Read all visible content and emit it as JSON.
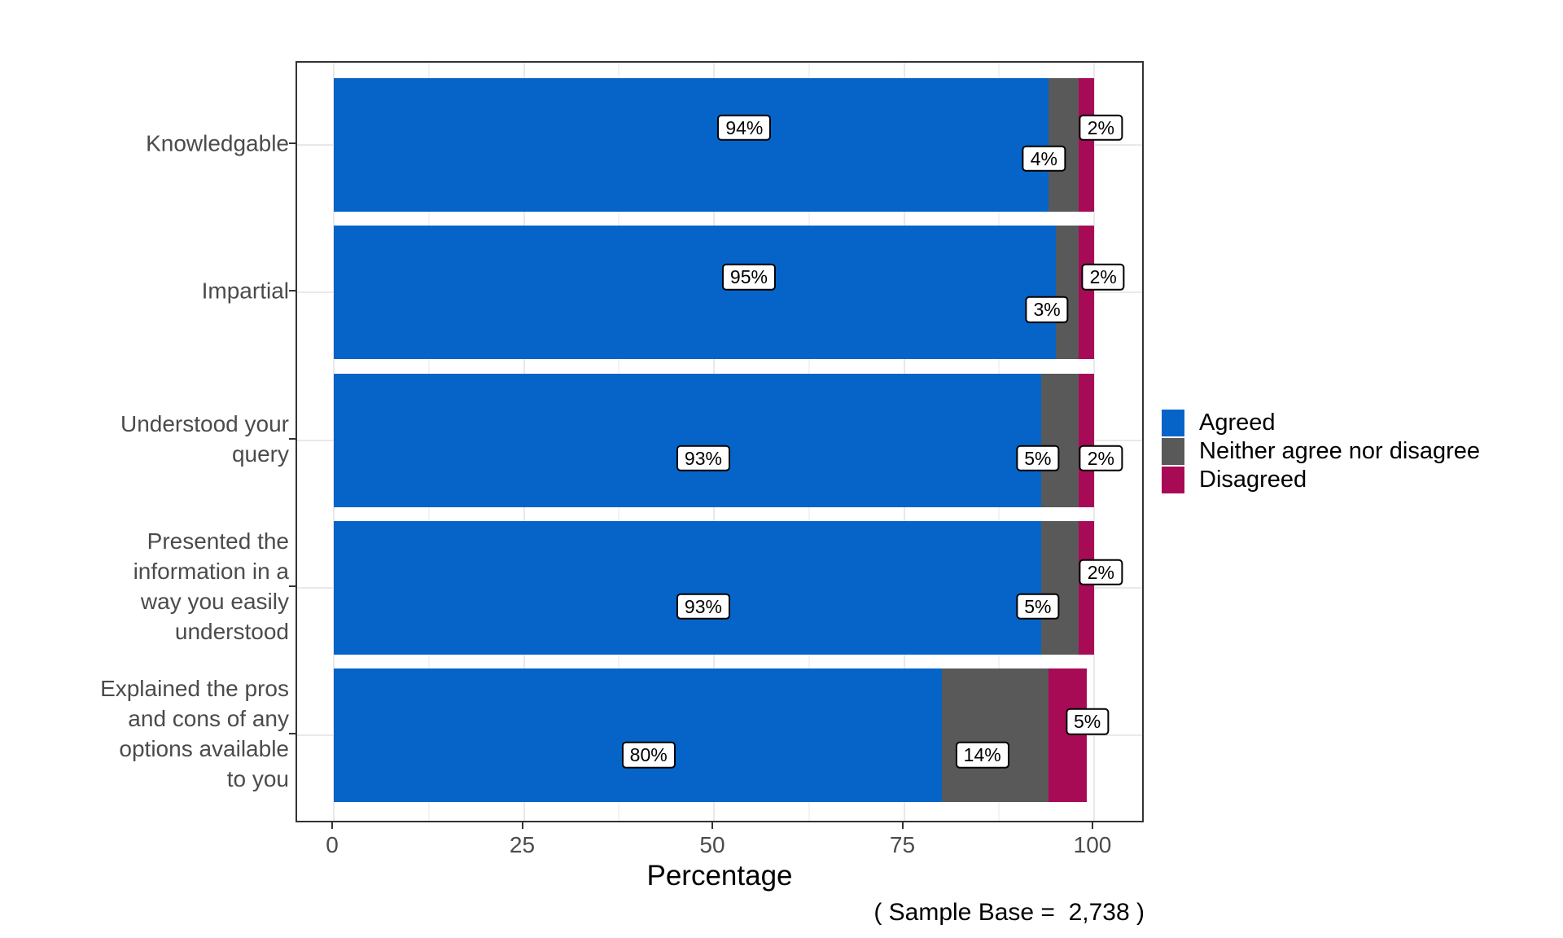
{
  "figure": {
    "xlabel": "Percentage",
    "caption": "( Sample Base =  2,738 )"
  },
  "chart_data": {
    "type": "bar",
    "orientation": "horizontal",
    "stacked": true,
    "title": "",
    "xlabel": "Percentage",
    "ylabel": "",
    "caption": "( Sample Base =  2,738 )",
    "sample_base": "2,738",
    "xlim": [
      0,
      107
    ],
    "xticks": [
      0,
      25,
      50,
      75,
      100
    ],
    "grid": {
      "x_major": [
        0,
        25,
        50,
        75,
        100
      ],
      "x_minor": [
        12.5,
        37.5,
        62.5,
        87.5
      ],
      "y_major": "category_centers"
    },
    "legend_position": "right",
    "categories": [
      "Knowledgable",
      "Impartial",
      "Understood your\nquery",
      "Presented the\ninformation in a\nway you easily\nunderstood",
      "Explained the pros\nand cons of any\noptions available\nto you"
    ],
    "series": [
      {
        "name": "Agreed",
        "color": "#0664c8",
        "values": [
          94,
          95,
          93,
          93,
          80
        ]
      },
      {
        "name": "Neither agree nor disagree",
        "color": "#595959",
        "values": [
          4,
          3,
          5,
          5,
          14
        ]
      },
      {
        "name": "Disagreed",
        "color": "#a80b56",
        "values": [
          2,
          2,
          2,
          2,
          5
        ]
      }
    ],
    "value_labels": [
      [
        {
          "text": "94%",
          "x": 54.0,
          "dy": -21
        },
        {
          "text": "4%",
          "x": 93.4,
          "dy": 17
        },
        {
          "text": "2%",
          "x": 100.9,
          "dy": -21
        }
      ],
      [
        {
          "text": "95%",
          "x": 54.6,
          "dy": -19
        },
        {
          "text": "3%",
          "x": 93.8,
          "dy": 21
        },
        {
          "text": "2%",
          "x": 101.2,
          "dy": -19
        }
      ],
      [
        {
          "text": "93%",
          "x": 48.6,
          "dy": 22
        },
        {
          "text": "5%",
          "x": 92.6,
          "dy": 22
        },
        {
          "text": "2%",
          "x": 100.9,
          "dy": 22
        }
      ],
      [
        {
          "text": "93%",
          "x": 48.6,
          "dy": 23
        },
        {
          "text": "5%",
          "x": 92.6,
          "dy": 23
        },
        {
          "text": "2%",
          "x": 100.9,
          "dy": -19
        }
      ],
      [
        {
          "text": "80%",
          "x": 41.4,
          "dy": 24
        },
        {
          "text": "14%",
          "x": 85.3,
          "dy": 24
        },
        {
          "text": "5%",
          "x": 99.1,
          "dy": -17
        }
      ]
    ]
  }
}
